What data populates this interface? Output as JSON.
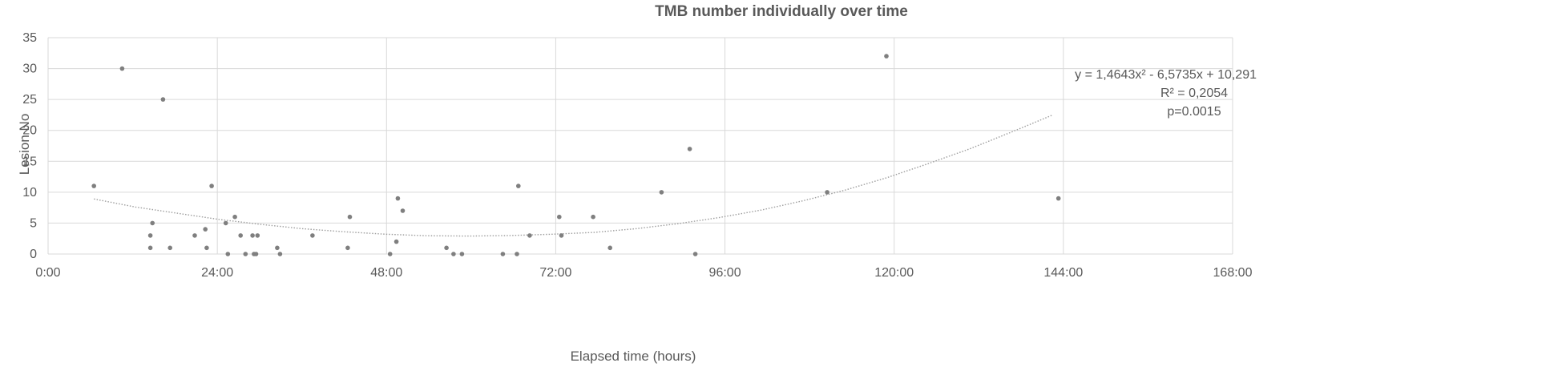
{
  "chart_data": {
    "type": "scatter",
    "title": "TMB number individually over time",
    "xlabel": "Elapsed time (hours)",
    "ylabel": "Lesion No",
    "xlim": [
      0,
      168
    ],
    "ylim": [
      0,
      35
    ],
    "x_ticks": [
      0,
      24,
      48,
      72,
      96,
      120,
      144,
      168
    ],
    "x_tick_labels": [
      "0:00",
      "24:00",
      "48:00",
      "72:00",
      "96:00",
      "120:00",
      "144:00",
      "168:00"
    ],
    "y_ticks": [
      0,
      5,
      10,
      15,
      20,
      25,
      30,
      35
    ],
    "y_tick_labels": [
      "0",
      "5",
      "10",
      "15",
      "20",
      "25",
      "30",
      "35"
    ],
    "grid": true,
    "legend": "none",
    "colors": {
      "points": "#7f7f7f",
      "trendline": "#9e9e9e",
      "grid": "#d9d9d9",
      "text": "#595959"
    },
    "points": [
      {
        "x": 6.5,
        "y": 11
      },
      {
        "x": 10.5,
        "y": 30
      },
      {
        "x": 14.5,
        "y": 3
      },
      {
        "x": 14.5,
        "y": 1
      },
      {
        "x": 14.8,
        "y": 5
      },
      {
        "x": 16.3,
        "y": 25
      },
      {
        "x": 17.3,
        "y": 1
      },
      {
        "x": 20.8,
        "y": 3
      },
      {
        "x": 22.3,
        "y": 4
      },
      {
        "x": 22.5,
        "y": 1
      },
      {
        "x": 23.2,
        "y": 11
      },
      {
        "x": 25.2,
        "y": 5
      },
      {
        "x": 25.5,
        "y": 0
      },
      {
        "x": 26.5,
        "y": 6
      },
      {
        "x": 27.3,
        "y": 3
      },
      {
        "x": 28.0,
        "y": 0
      },
      {
        "x": 29.0,
        "y": 3
      },
      {
        "x": 29.2,
        "y": 0
      },
      {
        "x": 29.5,
        "y": 0
      },
      {
        "x": 29.7,
        "y": 3
      },
      {
        "x": 32.5,
        "y": 1
      },
      {
        "x": 32.9,
        "y": 0
      },
      {
        "x": 37.5,
        "y": 3
      },
      {
        "x": 42.5,
        "y": 1
      },
      {
        "x": 42.8,
        "y": 6
      },
      {
        "x": 48.5,
        "y": 0
      },
      {
        "x": 49.4,
        "y": 2
      },
      {
        "x": 49.6,
        "y": 9
      },
      {
        "x": 50.3,
        "y": 7
      },
      {
        "x": 56.5,
        "y": 1
      },
      {
        "x": 57.5,
        "y": 0
      },
      {
        "x": 58.7,
        "y": 0
      },
      {
        "x": 64.5,
        "y": 0
      },
      {
        "x": 66.5,
        "y": 0
      },
      {
        "x": 66.7,
        "y": 11
      },
      {
        "x": 68.3,
        "y": 3
      },
      {
        "x": 72.5,
        "y": 6
      },
      {
        "x": 72.8,
        "y": 3
      },
      {
        "x": 77.3,
        "y": 6
      },
      {
        "x": 79.7,
        "y": 1
      },
      {
        "x": 87.0,
        "y": 10
      },
      {
        "x": 91.0,
        "y": 17
      },
      {
        "x": 91.8,
        "y": 0
      },
      {
        "x": 110.5,
        "y": 10
      },
      {
        "x": 118.9,
        "y": 32
      },
      {
        "x": 143.3,
        "y": 9
      }
    ],
    "trendline": {
      "type": "polynomial",
      "order": 2,
      "x_start": 6.5,
      "x_end": 142.5,
      "ys": [
        8.9,
        7.6,
        6.6,
        5.6,
        4.8,
        4.1,
        3.6,
        3.2,
        2.95,
        2.9,
        3.0,
        3.2,
        3.5,
        4.1,
        4.9,
        5.9,
        7.1,
        8.6,
        10.3,
        12.3,
        14.6,
        17.0,
        19.7,
        22.5
      ]
    },
    "annotations": [
      "y = 1,4643x² - 6,5735x + 10,291",
      "R² = 0,2054",
      "p=0.0015"
    ]
  }
}
